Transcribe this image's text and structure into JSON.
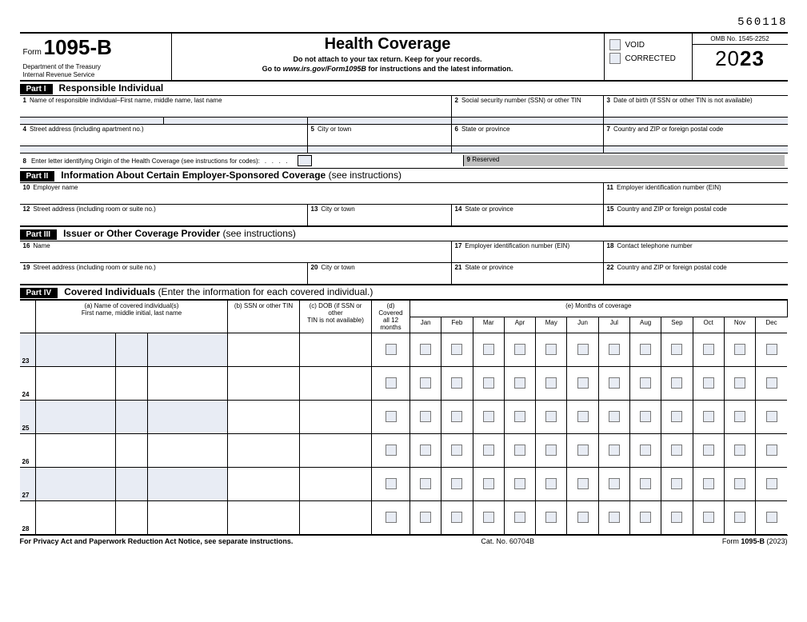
{
  "top_code": "560118",
  "form_label": "Form",
  "form_number": "1095-B",
  "dept1": "Department of the Treasury",
  "dept2": "Internal Revenue Service",
  "title": "Health Coverage",
  "subtitle1": "Do not attach to your tax return. Keep for your records.",
  "subtitle2_a": "Go to ",
  "subtitle2_b": "www.irs.gov/Form1095B",
  "subtitle2_c": " for instructions and the latest information.",
  "void_label": "VOID",
  "corrected_label": "CORRECTED",
  "omb": "OMB No. 1545-2252",
  "year_prefix": "20",
  "year_bold": "23",
  "colors": {
    "shade": "#e8ecf4",
    "reserve": "#bfbfbf",
    "border": "#000000"
  },
  "part1": {
    "tag": "Part I",
    "title": "Responsible Individual",
    "l1": "Name of responsible individual–First name, middle name, last name",
    "l2": "Social security number (SSN) or other TIN",
    "l3": "Date of birth (if SSN or other TIN is not available)",
    "l4": "Street address (including apartment no.)",
    "l5": "City or town",
    "l6": "State or province",
    "l7": "Country and ZIP or foreign postal code",
    "l8": "Enter letter identifying Origin of the Health Coverage (see instructions for codes):",
    "l9": "Reserved"
  },
  "part2": {
    "tag": "Part II",
    "title": "Information About Certain Employer-Sponsored Coverage",
    "see": "(see instructions)",
    "l10": "Employer name",
    "l11": "Employer identification number (EIN)",
    "l12": "Street address (including room or suite no.)",
    "l13": "City or town",
    "l14": "State or province",
    "l15": "Country and ZIP or foreign postal code"
  },
  "part3": {
    "tag": "Part III",
    "title": "Issuer or Other Coverage Provider",
    "see": "(see instructions)",
    "l16": "Name",
    "l17": "Employer identification number (EIN)",
    "l18": "Contact telephone number",
    "l19": "Street address (including room or suite no.)",
    "l20": "City or town",
    "l21": "State or province",
    "l22": "Country and ZIP or foreign postal code"
  },
  "part4": {
    "tag": "Part IV",
    "title": "Covered Individuals",
    "note": "(Enter the information for each covered individual.)",
    "col_a1": "(a) Name of covered individual(s)",
    "col_a2": "First name, middle initial, last name",
    "col_b": "(b) SSN or other TIN",
    "col_c1": "(c) DOB (if SSN or other",
    "col_c2": "TIN is not available)",
    "col_d1": "(d) Covered",
    "col_d2": "all 12 months",
    "col_e": "(e) Months of coverage",
    "months": [
      "Jan",
      "Feb",
      "Mar",
      "Apr",
      "May",
      "Jun",
      "Jul",
      "Aug",
      "Sep",
      "Oct",
      "Nov",
      "Dec"
    ],
    "rows": [
      "23",
      "24",
      "25",
      "26",
      "27",
      "28"
    ]
  },
  "footer": {
    "left": "For Privacy Act and Paperwork Reduction Act Notice, see separate instructions.",
    "mid": "Cat. No. 60704B",
    "right_a": "Form ",
    "right_b": "1095-B",
    "right_c": " (2023)"
  }
}
